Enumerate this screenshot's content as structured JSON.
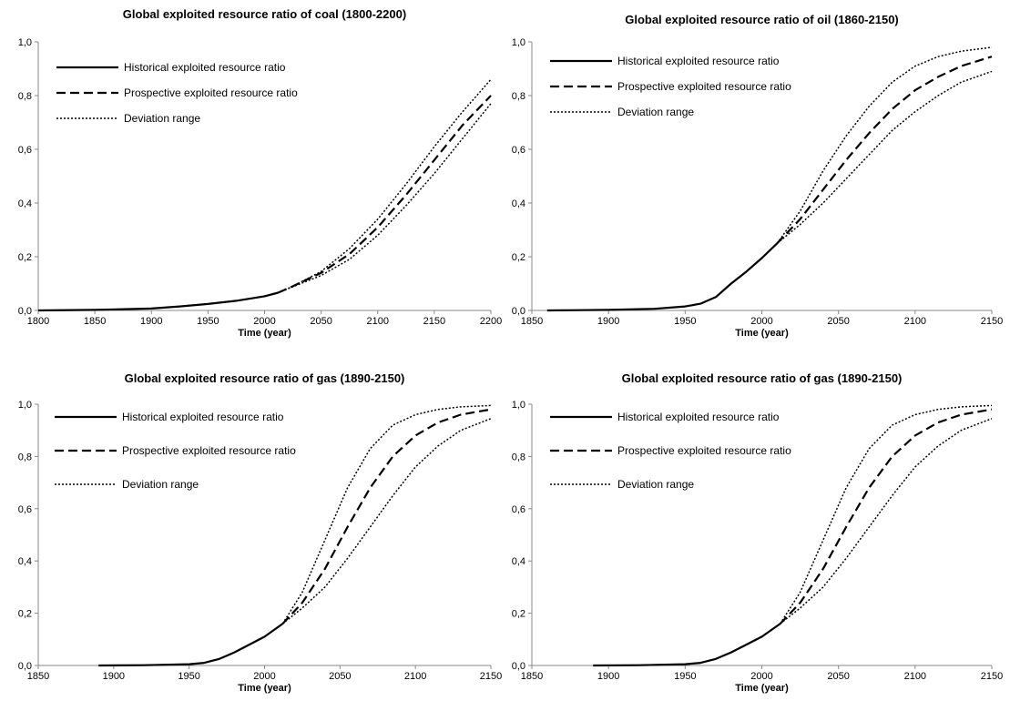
{
  "chart_data": [
    {
      "type": "line",
      "title": "Global exploited resource ratio of coal (1800-2200)",
      "xlabel": "Time (year)",
      "ylabel": "",
      "xlim": [
        1800,
        2200
      ],
      "ylim": [
        0,
        1
      ],
      "x_ticks": [
        "1800",
        "1850",
        "1900",
        "1950",
        "2000",
        "2050",
        "2100",
        "2150",
        "2200"
      ],
      "y_ticks": [
        "0,0",
        "0,2",
        "0,4",
        "0,6",
        "0,8",
        "1,0"
      ],
      "grid": false,
      "legend": [
        "Historical exploited resource ratio",
        "Prospective exploited resource ratio",
        "Deviation range"
      ],
      "series": [
        {
          "name": "Historical exploited resource ratio",
          "style": "solid",
          "x": [
            1800,
            1850,
            1900,
            1925,
            1950,
            1975,
            2000,
            2012
          ],
          "values": [
            0.0,
            0.002,
            0.007,
            0.015,
            0.024,
            0.036,
            0.053,
            0.066
          ]
        },
        {
          "name": "Prospective exploited resource ratio",
          "style": "dashed",
          "x": [
            2012,
            2025,
            2050,
            2075,
            2100,
            2125,
            2150,
            2175,
            2200
          ],
          "values": [
            0.066,
            0.09,
            0.14,
            0.21,
            0.31,
            0.43,
            0.56,
            0.69,
            0.8
          ]
        },
        {
          "name": "Deviation range",
          "style": "dotted",
          "x": [
            2012,
            2025,
            2050,
            2075,
            2100,
            2125,
            2150,
            2175,
            2200
          ],
          "values": [
            0.066,
            0.09,
            0.145,
            0.23,
            0.34,
            0.47,
            0.61,
            0.74,
            0.86
          ]
        },
        {
          "name": "",
          "style": "dotted",
          "x": [
            2012,
            2025,
            2050,
            2075,
            2100,
            2125,
            2150,
            2175,
            2200
          ],
          "values": [
            0.066,
            0.088,
            0.13,
            0.19,
            0.28,
            0.39,
            0.51,
            0.64,
            0.77
          ]
        }
      ]
    },
    {
      "type": "line",
      "title": "Global exploited resource ratio of oil (1860-2150)",
      "xlabel": "Time (year)",
      "ylabel": "",
      "xlim": [
        1850,
        2150
      ],
      "ylim": [
        0,
        1
      ],
      "x_ticks": [
        "1850",
        "1900",
        "1950",
        "2000",
        "2050",
        "2100",
        "2150"
      ],
      "y_ticks": [
        "0,0",
        "0,2",
        "0,4",
        "0,6",
        "0,8",
        "1,0"
      ],
      "grid": false,
      "legend": [
        "Historical exploited resource ratio",
        "Prospective exploited resource ratio",
        "Deviation range"
      ],
      "series": [
        {
          "name": "Historical exploited resource ratio",
          "style": "solid",
          "x": [
            1860,
            1900,
            1930,
            1950,
            1960,
            1970,
            1980,
            1990,
            2000,
            2010
          ],
          "values": [
            0.0,
            0.002,
            0.006,
            0.015,
            0.025,
            0.05,
            0.1,
            0.145,
            0.195,
            0.25
          ]
        },
        {
          "name": "Prospective exploited resource ratio",
          "style": "dashed",
          "x": [
            2010,
            2025,
            2040,
            2055,
            2070,
            2085,
            2100,
            2115,
            2130,
            2150
          ],
          "values": [
            0.25,
            0.34,
            0.45,
            0.56,
            0.66,
            0.75,
            0.82,
            0.87,
            0.91,
            0.945
          ]
        },
        {
          "name": "Deviation range",
          "style": "dotted",
          "x": [
            2010,
            2025,
            2040,
            2055,
            2070,
            2085,
            2100,
            2115,
            2130,
            2150
          ],
          "values": [
            0.25,
            0.37,
            0.52,
            0.65,
            0.76,
            0.85,
            0.91,
            0.945,
            0.965,
            0.98
          ]
        },
        {
          "name": "",
          "style": "dotted",
          "x": [
            2010,
            2025,
            2040,
            2055,
            2070,
            2085,
            2100,
            2115,
            2130,
            2150
          ],
          "values": [
            0.25,
            0.32,
            0.4,
            0.49,
            0.58,
            0.67,
            0.74,
            0.8,
            0.85,
            0.89
          ]
        }
      ]
    },
    {
      "type": "line",
      "title": "Global exploited resource ratio of gas (1890-2150)",
      "xlabel": "Time (year)",
      "ylabel": "",
      "xlim": [
        1850,
        2150
      ],
      "ylim": [
        0,
        1
      ],
      "x_ticks": [
        "1850",
        "1900",
        "1950",
        "2000",
        "2050",
        "2100",
        "2150"
      ],
      "y_ticks": [
        "0,0",
        "0,2",
        "0,4",
        "0,6",
        "0,8",
        "1,0"
      ],
      "grid": false,
      "legend": [
        "Historical exploited resource ratio",
        "Prospective exploited resource ratio",
        "Deviation range"
      ],
      "series": [
        {
          "name": "Historical exploited resource ratio",
          "style": "solid",
          "x": [
            1890,
            1920,
            1950,
            1960,
            1970,
            1980,
            1990,
            2000,
            2012
          ],
          "values": [
            0.0,
            0.001,
            0.005,
            0.01,
            0.025,
            0.05,
            0.08,
            0.11,
            0.16
          ]
        },
        {
          "name": "Prospective exploited resource ratio",
          "style": "dashed",
          "x": [
            2012,
            2025,
            2040,
            2055,
            2070,
            2085,
            2100,
            2115,
            2130,
            2150
          ],
          "values": [
            0.16,
            0.24,
            0.37,
            0.53,
            0.68,
            0.8,
            0.88,
            0.93,
            0.96,
            0.98
          ]
        },
        {
          "name": "Deviation range",
          "style": "dotted",
          "x": [
            2012,
            2025,
            2040,
            2055,
            2070,
            2085,
            2100,
            2115,
            2130,
            2150
          ],
          "values": [
            0.16,
            0.28,
            0.48,
            0.68,
            0.83,
            0.92,
            0.96,
            0.98,
            0.99,
            0.995
          ]
        },
        {
          "name": "",
          "style": "dotted",
          "x": [
            2012,
            2025,
            2040,
            2055,
            2070,
            2085,
            2100,
            2115,
            2130,
            2150
          ],
          "values": [
            0.16,
            0.22,
            0.3,
            0.41,
            0.53,
            0.65,
            0.76,
            0.84,
            0.9,
            0.945
          ]
        }
      ]
    },
    {
      "type": "line",
      "title": "Global exploited resource ratio of gas (1890-2150)",
      "xlabel": "Time (year)",
      "ylabel": "",
      "xlim": [
        1850,
        2150
      ],
      "ylim": [
        0,
        1
      ],
      "x_ticks": [
        "1850",
        "1900",
        "1950",
        "2000",
        "2050",
        "2100",
        "2150"
      ],
      "y_ticks": [
        "0,0",
        "0,2",
        "0,4",
        "0,6",
        "0,8",
        "1,0"
      ],
      "grid": false,
      "legend": [
        "Historical exploited resource ratio",
        "Prospective exploited resource ratio",
        "Deviation range"
      ],
      "series": [
        {
          "name": "Historical exploited resource ratio",
          "style": "solid",
          "x": [
            1890,
            1920,
            1950,
            1960,
            1970,
            1980,
            1990,
            2000,
            2012
          ],
          "values": [
            0.0,
            0.001,
            0.005,
            0.01,
            0.025,
            0.05,
            0.08,
            0.11,
            0.16
          ]
        },
        {
          "name": "Prospective exploited resource ratio",
          "style": "dashed",
          "x": [
            2012,
            2025,
            2040,
            2055,
            2070,
            2085,
            2100,
            2115,
            2130,
            2150
          ],
          "values": [
            0.16,
            0.24,
            0.37,
            0.53,
            0.68,
            0.8,
            0.88,
            0.93,
            0.96,
            0.98
          ]
        },
        {
          "name": "Deviation range",
          "style": "dotted",
          "x": [
            2012,
            2025,
            2040,
            2055,
            2070,
            2085,
            2100,
            2115,
            2130,
            2150
          ],
          "values": [
            0.16,
            0.28,
            0.48,
            0.68,
            0.83,
            0.92,
            0.96,
            0.98,
            0.99,
            0.995
          ]
        },
        {
          "name": "",
          "style": "dotted",
          "x": [
            2012,
            2025,
            2040,
            2055,
            2070,
            2085,
            2100,
            2115,
            2130,
            2150
          ],
          "values": [
            0.16,
            0.22,
            0.3,
            0.41,
            0.53,
            0.65,
            0.76,
            0.84,
            0.9,
            0.945
          ]
        }
      ]
    }
  ]
}
